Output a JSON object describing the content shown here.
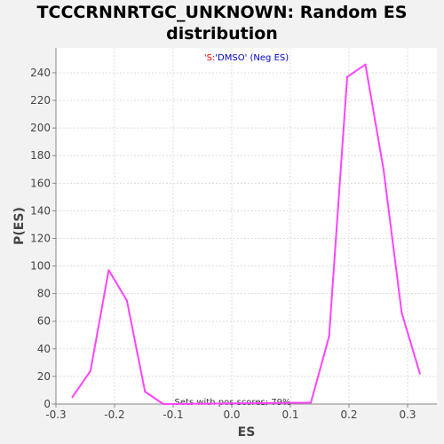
{
  "chart_data": {
    "type": "line",
    "title": "TCCCRNNRTGC_UNKNOWN: Random ES distribution",
    "subtitle_parts": [
      {
        "text": "'S:",
        "color": "#ff0000"
      },
      {
        "text": "'DMSO' (Neg ES)",
        "color": "#0000cc"
      }
    ],
    "xlabel": "ES",
    "ylabel": "P(ES)",
    "xlim": [
      -0.3,
      0.35
    ],
    "ylim": [
      0,
      258
    ],
    "xticks": [
      -0.3,
      -0.2,
      -0.1,
      0.0,
      0.1,
      0.2,
      0.3
    ],
    "xtick_labels": [
      "-0.3",
      "-0.2",
      "-0.1",
      "0.0",
      "0.1",
      "0.2",
      "0.3"
    ],
    "yticks": [
      0,
      20,
      40,
      60,
      80,
      100,
      120,
      140,
      160,
      180,
      200,
      220,
      240
    ],
    "grid": true,
    "line_color": "#ff44ff",
    "annotation": "Sets with pos scores: 79%",
    "series": [
      {
        "x": [
          -0.272,
          -0.241,
          -0.21,
          -0.179,
          -0.148,
          -0.117,
          0.135,
          0.166,
          0.197,
          0.228,
          0.259,
          0.29,
          0.321
        ],
        "y": [
          5,
          24,
          97,
          75,
          9,
          0,
          1,
          49,
          237,
          246,
          170,
          66,
          22
        ]
      }
    ]
  }
}
